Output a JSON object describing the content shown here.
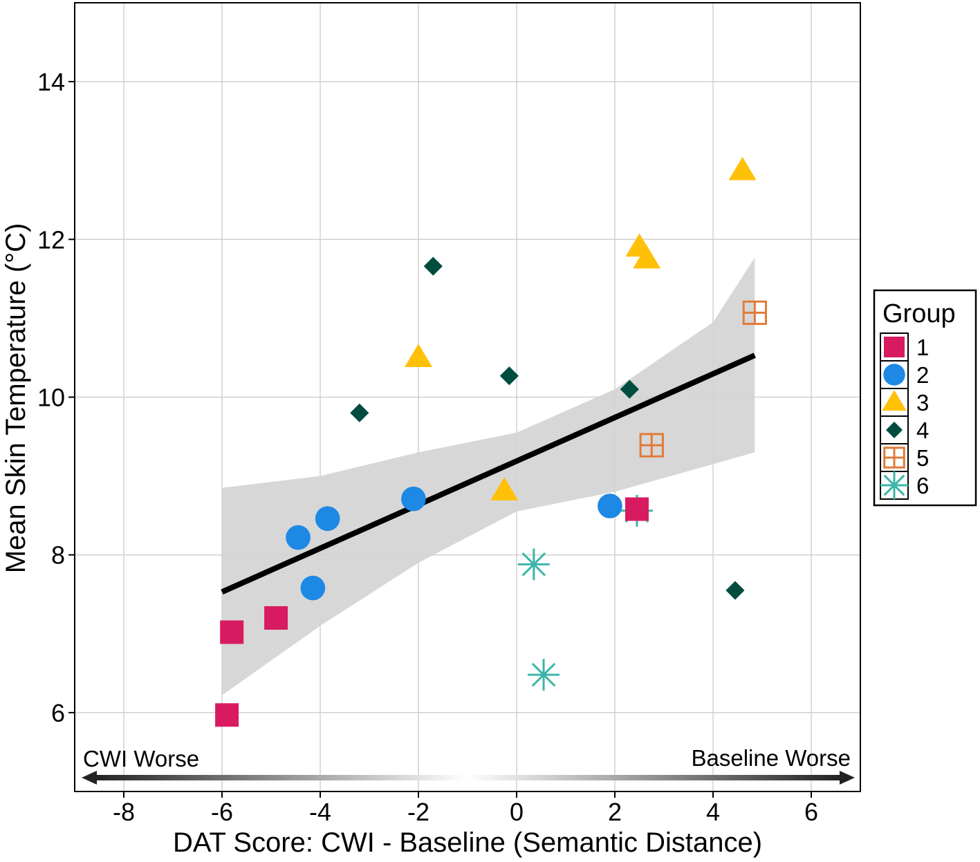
{
  "chart_data": {
    "type": "scatter",
    "title": "",
    "xlabel": "DAT Score: CWI - Baseline (Semantic Distance)",
    "ylabel": "Mean Skin Temperature (°C)",
    "xlim": [
      -9.0,
      7.0
    ],
    "ylim": [
      5.0,
      15.0
    ],
    "x_ticks": [
      -8,
      -6,
      -4,
      -2,
      0,
      2,
      4,
      6
    ],
    "y_ticks": [
      6,
      8,
      10,
      12,
      14
    ],
    "x_tick_labels": [
      "-8",
      "-6",
      "-4",
      "-2",
      "0",
      "2",
      "4",
      "6"
    ],
    "y_tick_labels": [
      "6",
      "8",
      "10",
      "12",
      "14"
    ],
    "grid": true,
    "legend": {
      "title": "Group",
      "position": "right",
      "entries": [
        "1",
        "2",
        "3",
        "4",
        "5",
        "6"
      ]
    },
    "colors": {
      "group1": "#D81B60",
      "group2": "#1E88E5",
      "group3": "#FFC107",
      "group4": "#004D40",
      "group5": "#E07B39",
      "group6": "#3CB4A8",
      "fit_line": "#000000",
      "ci_band": "#D3D3D3",
      "grid": "#D0D0D0"
    },
    "series": [
      {
        "name": "1",
        "marker": "square",
        "x": [
          -5.9,
          -5.8,
          -4.9,
          2.45
        ],
        "y": [
          5.97,
          7.02,
          7.2,
          8.58
        ]
      },
      {
        "name": "2",
        "marker": "circle",
        "x": [
          -4.45,
          -3.85,
          -4.15,
          -2.1,
          1.9
        ],
        "y": [
          8.22,
          8.46,
          7.58,
          8.71,
          8.62
        ]
      },
      {
        "name": "3",
        "marker": "triangle",
        "x": [
          -2.0,
          -0.25,
          2.5,
          2.65,
          4.6
        ],
        "y": [
          10.5,
          8.81,
          11.9,
          11.75,
          12.87
        ]
      },
      {
        "name": "4",
        "marker": "diamond",
        "x": [
          -3.2,
          -1.7,
          -0.15,
          2.3,
          4.45
        ],
        "y": [
          9.8,
          11.66,
          10.27,
          10.1,
          7.55
        ]
      },
      {
        "name": "5",
        "marker": "square-cross",
        "x": [
          2.75,
          4.85
        ],
        "y": [
          9.39,
          11.07
        ]
      },
      {
        "name": "6",
        "marker": "asterisk",
        "x": [
          0.35,
          0.55,
          2.45
        ],
        "y": [
          7.88,
          6.48,
          8.56
        ]
      }
    ],
    "fit_line": {
      "x": [
        -6.0,
        4.85
      ],
      "y": [
        7.53,
        10.53
      ]
    },
    "ci_band": {
      "x": [
        -6.0,
        -4.0,
        -2.0,
        0.0,
        2.0,
        4.0,
        4.85
      ],
      "upper": [
        8.85,
        9.0,
        9.3,
        9.55,
        10.1,
        10.95,
        11.77
      ],
      "lower": [
        6.22,
        7.1,
        7.9,
        8.55,
        8.8,
        9.15,
        9.3
      ]
    },
    "annotations": {
      "left": "CWI Worse",
      "right": "Baseline Worse"
    }
  }
}
